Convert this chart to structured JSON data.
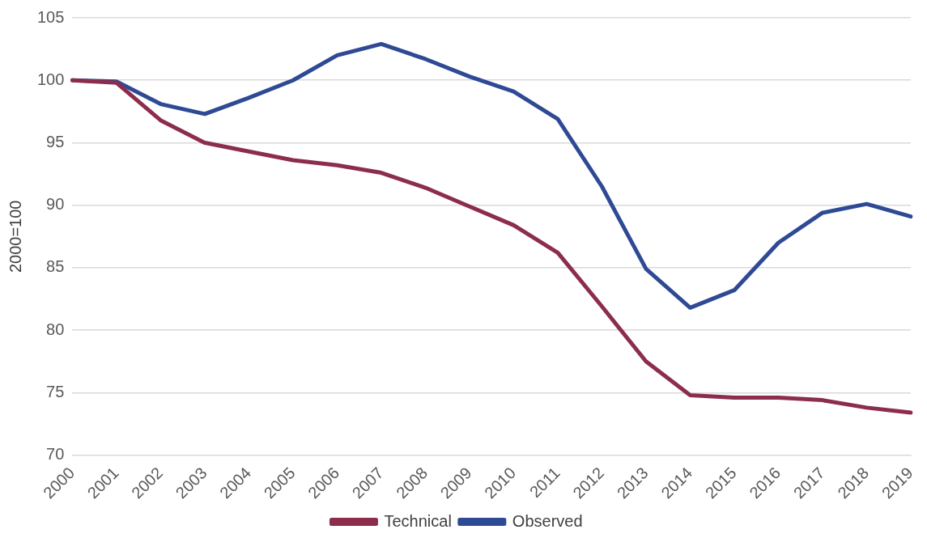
{
  "chart_data": {
    "type": "line",
    "ylabel": "2000=100",
    "categories": [
      "2000",
      "2001",
      "2002",
      "2003",
      "2004",
      "2005",
      "2006",
      "2007",
      "2008",
      "2009",
      "2010",
      "2011",
      "2012",
      "2013",
      "2014",
      "2015",
      "2016",
      "2017",
      "2018",
      "2019"
    ],
    "series": [
      {
        "name": "Technical",
        "color": "#8c2d4b",
        "values": [
          100,
          99.8,
          96.8,
          95.0,
          94.3,
          93.6,
          93.2,
          92.6,
          91.4,
          89.9,
          88.4,
          86.2,
          81.9,
          77.5,
          74.8,
          74.6,
          74.6,
          74.4,
          73.8,
          73.4
        ]
      },
      {
        "name": "Observed",
        "color": "#2f4a94",
        "values": [
          100,
          99.9,
          98.1,
          97.3,
          98.6,
          100,
          102.0,
          102.9,
          101.7,
          100.3,
          99.1,
          96.9,
          91.5,
          84.9,
          81.8,
          83.2,
          87.0,
          89.4,
          90.1,
          89.1
        ]
      }
    ],
    "ylim": [
      70,
      105
    ],
    "yticks": [
      70,
      75,
      80,
      85,
      90,
      95,
      100,
      105
    ],
    "grid": "y",
    "legend": "bottom",
    "marker": "none",
    "line_style": "solid"
  }
}
